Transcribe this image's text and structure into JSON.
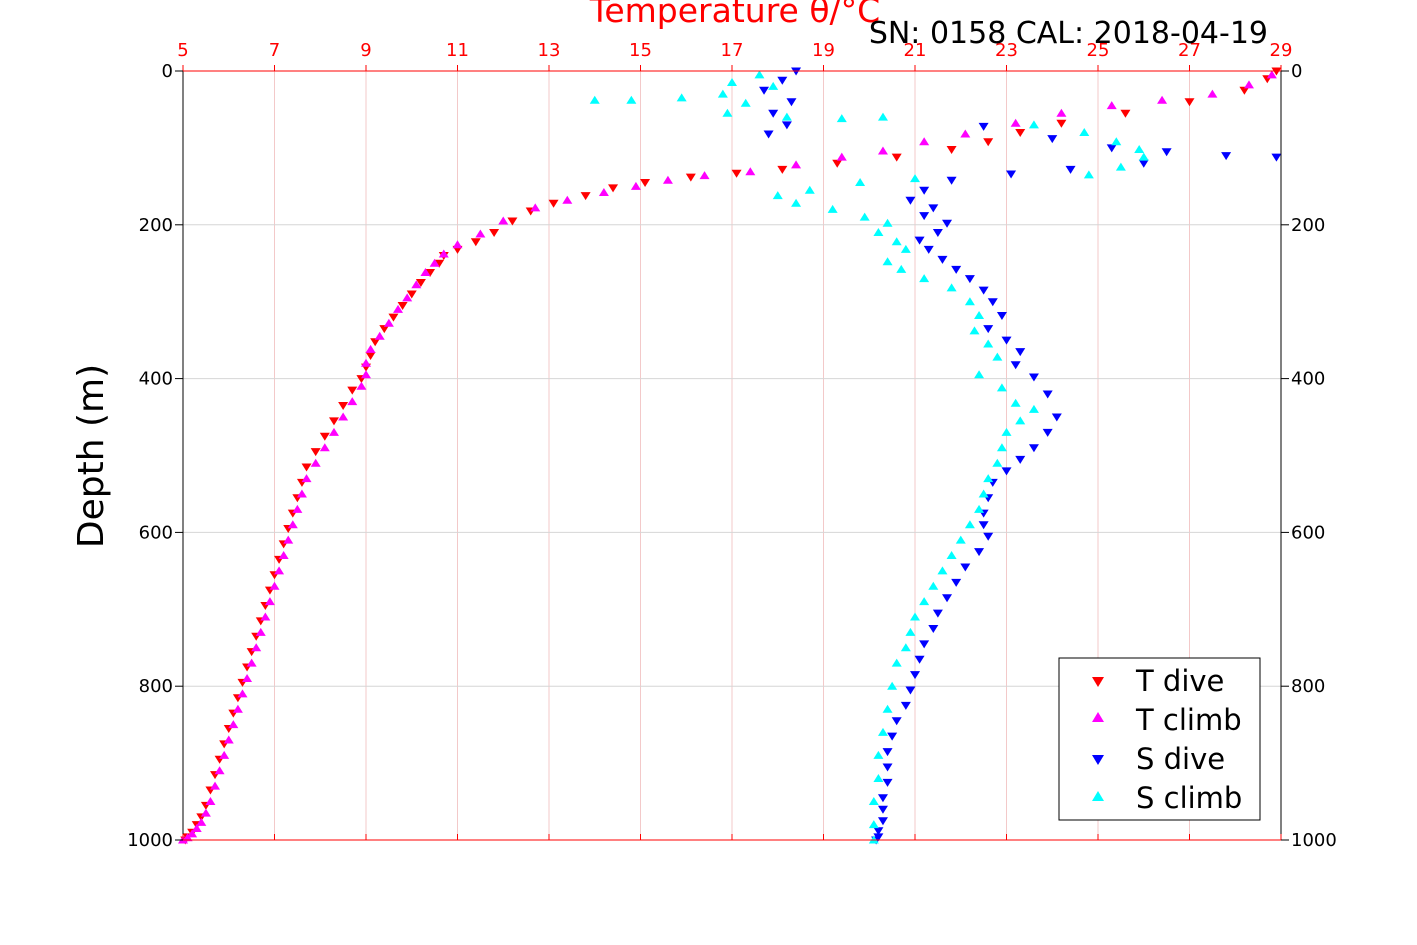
{
  "header": {
    "sn_text": "SN: 0158  CAL: 2018-04-19"
  },
  "colors": {
    "t_dive": "#ff0000",
    "t_climb": "#ff00ff",
    "s_dive": "#0000ff",
    "s_climb": "#00ffff",
    "top_axis": "#ff0000",
    "grid_x": "#f3c9c9",
    "grid_y": "#d6d6d6"
  },
  "chart_data": {
    "type": "scatter",
    "title": "Temperature θ/°C",
    "ylabel": "Depth (m)",
    "xlim": [
      5,
      29
    ],
    "ylim": [
      1000,
      0
    ],
    "x_ticks": [
      "5",
      "7",
      "9",
      "11",
      "13",
      "15",
      "17",
      "19",
      "21",
      "23",
      "25",
      "27",
      "29"
    ],
    "y_ticks": [
      "0",
      "200",
      "400",
      "600",
      "800",
      "1000"
    ],
    "y_ticks_right": [
      "0",
      "200",
      "400",
      "600",
      "800",
      "1000"
    ],
    "grid": true,
    "legend_position": "bottom-right",
    "series": [
      {
        "name": "T dive",
        "marker": "triangle-down",
        "color": "#ff0000",
        "x": [
          28.9,
          28.7,
          28.2,
          27.0,
          25.6,
          24.2,
          23.3,
          22.6,
          21.8,
          20.6,
          19.3,
          18.1,
          17.1,
          16.1,
          15.1,
          14.4,
          13.8,
          13.1,
          12.6,
          12.2,
          11.8,
          11.4,
          11.0,
          10.7,
          10.6,
          10.4,
          10.2,
          10.0,
          9.8,
          9.6,
          9.4,
          9.2,
          9.1,
          9.0,
          8.9,
          8.7,
          8.5,
          8.3,
          8.1,
          7.9,
          7.7,
          7.6,
          7.5,
          7.4,
          7.3,
          7.2,
          7.1,
          7.0,
          6.9,
          6.8,
          6.7,
          6.6,
          6.5,
          6.4,
          6.3,
          6.2,
          6.1,
          6.0,
          5.9,
          5.8,
          5.7,
          5.6,
          5.5,
          5.4,
          5.3,
          5.2,
          5.1,
          5.05
        ],
        "y": [
          0,
          10,
          25,
          40,
          55,
          68,
          80,
          92,
          102,
          112,
          120,
          128,
          133,
          138,
          145,
          152,
          162,
          172,
          182,
          195,
          210,
          222,
          232,
          240,
          250,
          262,
          275,
          290,
          305,
          320,
          335,
          352,
          370,
          385,
          400,
          415,
          435,
          455,
          475,
          495,
          515,
          535,
          555,
          575,
          595,
          615,
          635,
          655,
          675,
          695,
          715,
          735,
          755,
          775,
          795,
          815,
          835,
          855,
          875,
          895,
          915,
          935,
          955,
          970,
          980,
          990,
          996,
          1000
        ]
      },
      {
        "name": "T climb",
        "marker": "triangle-up",
        "color": "#ff00ff",
        "x": [
          28.8,
          28.3,
          27.5,
          26.4,
          25.3,
          24.2,
          23.2,
          22.1,
          21.2,
          20.3,
          19.4,
          18.4,
          17.4,
          16.4,
          15.6,
          14.9,
          14.2,
          13.4,
          12.7,
          12.0,
          11.5,
          11.0,
          10.7,
          10.5,
          10.3,
          10.1,
          9.9,
          9.7,
          9.5,
          9.3,
          9.1,
          9.0,
          9.0,
          8.9,
          8.7,
          8.5,
          8.3,
          8.1,
          7.9,
          7.7,
          7.6,
          7.5,
          7.4,
          7.3,
          7.2,
          7.1,
          7.0,
          6.9,
          6.8,
          6.7,
          6.6,
          6.5,
          6.4,
          6.3,
          6.2,
          6.1,
          6.0,
          5.9,
          5.8,
          5.7,
          5.6,
          5.5,
          5.4,
          5.3,
          5.2,
          5.1,
          5.0
        ],
        "y": [
          5,
          18,
          30,
          38,
          45,
          55,
          68,
          82,
          92,
          104,
          112,
          122,
          131,
          136,
          142,
          150,
          158,
          168,
          178,
          195,
          212,
          226,
          238,
          250,
          262,
          278,
          295,
          310,
          328,
          345,
          362,
          380,
          395,
          410,
          430,
          450,
          470,
          490,
          510,
          530,
          550,
          570,
          590,
          610,
          630,
          650,
          670,
          690,
          710,
          730,
          750,
          770,
          790,
          810,
          830,
          850,
          870,
          890,
          910,
          930,
          950,
          965,
          977,
          985,
          992,
          997,
          1000
        ]
      },
      {
        "name": "S dive",
        "marker": "triangle-down",
        "color": "#0000ff",
        "x": [
          18.4,
          18.1,
          17.7,
          18.3,
          17.9,
          18.2,
          17.8,
          22.5,
          24.0,
          25.3,
          26.5,
          27.8,
          28.9,
          26.0,
          24.4,
          23.1,
          21.8,
          21.2,
          20.9,
          21.4,
          21.2,
          21.7,
          21.5,
          21.1,
          21.3,
          21.6,
          21.9,
          22.2,
          22.5,
          22.7,
          22.9,
          22.6,
          23.0,
          23.3,
          23.2,
          23.6,
          23.9,
          24.1,
          23.9,
          23.6,
          23.3,
          23.0,
          22.7,
          22.6,
          22.5,
          22.5,
          22.6,
          22.4,
          22.1,
          21.9,
          21.7,
          21.5,
          21.4,
          21.2,
          21.1,
          21.0,
          20.9,
          20.8,
          20.6,
          20.5,
          20.4,
          20.4,
          20.4,
          20.3,
          20.3,
          20.3,
          20.2,
          20.2,
          20.15
        ],
        "y": [
          0,
          12,
          25,
          40,
          55,
          70,
          82,
          72,
          88,
          100,
          105,
          110,
          112,
          120,
          128,
          134,
          142,
          155,
          168,
          178,
          188,
          198,
          210,
          220,
          232,
          245,
          258,
          270,
          285,
          300,
          318,
          335,
          350,
          365,
          382,
          398,
          420,
          450,
          470,
          490,
          505,
          520,
          535,
          555,
          575,
          590,
          605,
          625,
          645,
          665,
          685,
          705,
          725,
          745,
          765,
          785,
          805,
          825,
          845,
          865,
          885,
          905,
          925,
          945,
          960,
          975,
          988,
          996,
          1000
        ]
      },
      {
        "name": "S climb",
        "marker": "triangle-up",
        "color": "#00ffff",
        "x": [
          17.6,
          17.0,
          17.9,
          16.8,
          15.9,
          14.8,
          14.0,
          17.3,
          16.9,
          18.2,
          19.4,
          20.3,
          23.6,
          24.7,
          25.4,
          25.9,
          26.0,
          25.5,
          24.8,
          21.0,
          19.8,
          18.7,
          18.0,
          18.4,
          19.2,
          19.9,
          20.4,
          20.2,
          20.6,
          20.8,
          20.4,
          20.7,
          21.2,
          21.8,
          22.2,
          22.4,
          22.3,
          22.6,
          22.8,
          22.4,
          22.9,
          23.2,
          23.6,
          23.3,
          23.0,
          22.9,
          22.8,
          22.6,
          22.5,
          22.4,
          22.2,
          22.0,
          21.8,
          21.6,
          21.4,
          21.2,
          21.0,
          20.9,
          20.8,
          20.6,
          20.5,
          20.4,
          20.3,
          20.2,
          20.2,
          20.1,
          20.1,
          20.1
        ],
        "y": [
          5,
          15,
          20,
          30,
          35,
          38,
          38,
          42,
          55,
          60,
          62,
          60,
          70,
          80,
          92,
          102,
          112,
          125,
          135,
          140,
          145,
          155,
          162,
          172,
          180,
          190,
          198,
          210,
          222,
          232,
          248,
          258,
          270,
          282,
          300,
          318,
          338,
          355,
          372,
          395,
          412,
          432,
          440,
          455,
          470,
          490,
          510,
          530,
          550,
          570,
          590,
          610,
          630,
          650,
          670,
          690,
          710,
          730,
          750,
          770,
          800,
          830,
          860,
          890,
          920,
          950,
          980,
          1000
        ]
      }
    ]
  }
}
